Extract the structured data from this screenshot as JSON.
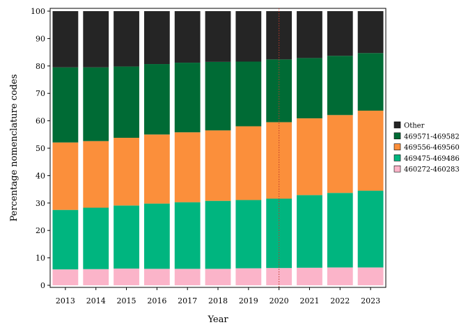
{
  "chart_data": {
    "type": "bar",
    "stacked": true,
    "title": "",
    "xlabel": "Year",
    "ylabel": "Percentage nomenclature codes",
    "ylim": [
      0,
      100
    ],
    "yticks": [
      0,
      10,
      20,
      30,
      40,
      50,
      60,
      70,
      80,
      90,
      100
    ],
    "categories": [
      "2013",
      "2014",
      "2015",
      "2016",
      "2017",
      "2018",
      "2019",
      "2020",
      "2021",
      "2022",
      "2023"
    ],
    "series": [
      {
        "name": "460272-460283",
        "color": "#fbb4c9",
        "values": [
          5.8,
          5.9,
          6.1,
          6.0,
          6.0,
          6.0,
          6.2,
          6.3,
          6.4,
          6.5,
          6.5
        ]
      },
      {
        "name": "469475-469486",
        "color": "#00b57f",
        "values": [
          21.7,
          22.4,
          23.0,
          23.8,
          24.3,
          24.8,
          24.9,
          25.3,
          26.5,
          27.2,
          28.0
        ]
      },
      {
        "name": "469556-469560",
        "color": "#fb8f3b",
        "values": [
          24.6,
          24.3,
          24.7,
          25.2,
          25.5,
          25.7,
          26.9,
          27.9,
          28.0,
          28.4,
          29.2
        ]
      },
      {
        "name": "469571-469582",
        "color": "#006b35",
        "values": [
          27.4,
          26.9,
          26.0,
          25.7,
          25.4,
          25.0,
          23.6,
          22.9,
          22.0,
          21.6,
          21.0
        ]
      },
      {
        "name": "Other",
        "color": "#252525",
        "values": [
          20.5,
          20.5,
          20.2,
          19.3,
          18.8,
          18.5,
          18.4,
          17.6,
          17.1,
          16.3,
          15.3
        ]
      }
    ],
    "legend_order": [
      "Other",
      "469571-469582",
      "469556-469560",
      "469475-469486",
      "460272-460283"
    ],
    "legend_position": "right",
    "reference_line": {
      "x": "2020",
      "color": "#c0392b",
      "style": "dotted"
    },
    "grid": false
  }
}
